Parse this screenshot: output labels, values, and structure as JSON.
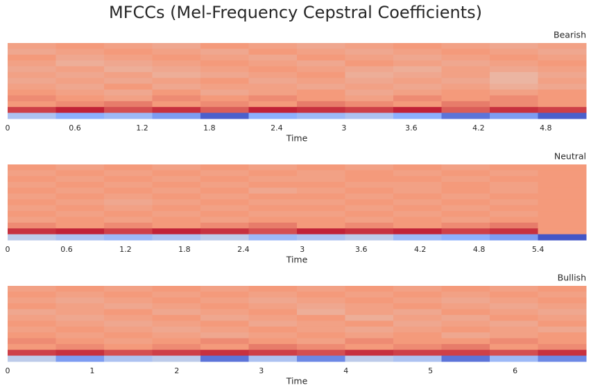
{
  "chart_data": [
    {
      "type": "heatmap",
      "figure_title": "MFCCs (Mel-Frequency Cepstral Coefficients)",
      "title": "Bearish",
      "xlabel": "Time",
      "xlim": [
        0,
        5.16
      ],
      "xticks": [
        0,
        0.6,
        1.2,
        1.8,
        2.4,
        3,
        3.6,
        4.2,
        4.8
      ],
      "zlim": [
        -1,
        1
      ],
      "colormap": "coolwarm",
      "z": [
        [
          0.45,
          0.5,
          0.45,
          0.4,
          0.5,
          0.45,
          0.4,
          0.45,
          0.5,
          0.45,
          0.4,
          0.45
        ],
        [
          0.4,
          0.45,
          0.5,
          0.45,
          0.4,
          0.5,
          0.45,
          0.4,
          0.45,
          0.5,
          0.45,
          0.4
        ],
        [
          0.5,
          0.4,
          0.45,
          0.5,
          0.45,
          0.4,
          0.5,
          0.45,
          0.4,
          0.45,
          0.5,
          0.45
        ],
        [
          0.45,
          0.35,
          0.4,
          0.45,
          0.5,
          0.45,
          0.4,
          0.5,
          0.45,
          0.4,
          0.45,
          0.5
        ],
        [
          0.4,
          0.45,
          0.35,
          0.4,
          0.45,
          0.5,
          0.45,
          0.4,
          0.35,
          0.45,
          0.4,
          0.45
        ],
        [
          0.45,
          0.4,
          0.45,
          0.35,
          0.4,
          0.45,
          0.5,
          0.35,
          0.4,
          0.45,
          0.3,
          0.4
        ],
        [
          0.4,
          0.45,
          0.4,
          0.45,
          0.5,
          0.4,
          0.45,
          0.4,
          0.45,
          0.4,
          0.3,
          0.45
        ],
        [
          0.45,
          0.4,
          0.5,
          0.4,
          0.45,
          0.45,
          0.4,
          0.45,
          0.4,
          0.45,
          0.35,
          0.4
        ],
        [
          0.5,
          0.45,
          0.4,
          0.5,
          0.4,
          0.45,
          0.5,
          0.4,
          0.45,
          0.5,
          0.45,
          0.5
        ],
        [
          0.55,
          0.5,
          0.45,
          0.55,
          0.5,
          0.55,
          0.5,
          0.45,
          0.55,
          0.5,
          0.55,
          0.5
        ],
        [
          0.5,
          0.55,
          0.6,
          0.5,
          0.55,
          0.5,
          0.6,
          0.55,
          0.5,
          0.6,
          0.55,
          0.5
        ],
        [
          0.8,
          0.9,
          0.75,
          0.85,
          0.7,
          0.9,
          0.85,
          0.8,
          0.9,
          0.7,
          0.85,
          0.8
        ],
        [
          -0.3,
          -0.5,
          -0.4,
          -0.6,
          -0.9,
          -0.5,
          -0.4,
          -0.3,
          -0.5,
          -0.8,
          -0.6,
          -0.9
        ]
      ]
    },
    {
      "type": "heatmap",
      "title": "Neutral",
      "xlabel": "Time",
      "xlim": [
        0,
        5.89
      ],
      "xticks": [
        0,
        0.6,
        1.2,
        1.8,
        2.4,
        3,
        3.6,
        4.2,
        4.8,
        5.4
      ],
      "zlim": [
        -1,
        1
      ],
      "colormap": "coolwarm",
      "z": [
        [
          0.5,
          0.45,
          0.5,
          0.45,
          0.5,
          0.45,
          0.5,
          0.45,
          0.5,
          0.45,
          0.5,
          0.5
        ],
        [
          0.45,
          0.5,
          0.45,
          0.5,
          0.45,
          0.5,
          0.45,
          0.5,
          0.45,
          0.5,
          0.45,
          0.5
        ],
        [
          0.5,
          0.45,
          0.5,
          0.45,
          0.5,
          0.45,
          0.45,
          0.5,
          0.5,
          0.45,
          0.5,
          0.5
        ],
        [
          0.45,
          0.5,
          0.45,
          0.5,
          0.45,
          0.5,
          0.5,
          0.45,
          0.45,
          0.5,
          0.45,
          0.5
        ],
        [
          0.5,
          0.45,
          0.5,
          0.45,
          0.5,
          0.4,
          0.45,
          0.5,
          0.45,
          0.5,
          0.45,
          0.5
        ],
        [
          0.45,
          0.5,
          0.45,
          0.5,
          0.45,
          0.5,
          0.5,
          0.45,
          0.5,
          0.45,
          0.5,
          0.5
        ],
        [
          0.5,
          0.45,
          0.4,
          0.45,
          0.5,
          0.45,
          0.45,
          0.5,
          0.45,
          0.5,
          0.45,
          0.5
        ],
        [
          0.45,
          0.5,
          0.45,
          0.5,
          0.45,
          0.5,
          0.5,
          0.45,
          0.5,
          0.45,
          0.5,
          0.5
        ],
        [
          0.5,
          0.45,
          0.5,
          0.45,
          0.5,
          0.45,
          0.45,
          0.5,
          0.45,
          0.5,
          0.45,
          0.5
        ],
        [
          0.45,
          0.5,
          0.45,
          0.5,
          0.45,
          0.5,
          0.5,
          0.45,
          0.5,
          0.45,
          0.5,
          0.5
        ],
        [
          0.55,
          0.5,
          0.55,
          0.5,
          0.55,
          0.6,
          0.5,
          0.55,
          0.5,
          0.55,
          0.6,
          0.5
        ],
        [
          0.85,
          0.9,
          0.8,
          0.9,
          0.85,
          0.75,
          0.9,
          0.85,
          0.9,
          0.8,
          0.85,
          0.5
        ],
        [
          -0.2,
          -0.3,
          -0.4,
          -0.3,
          -0.2,
          -0.4,
          -0.3,
          -0.2,
          -0.4,
          -0.5,
          -0.6,
          -0.95
        ]
      ]
    },
    {
      "type": "heatmap",
      "title": "Bullish",
      "xlabel": "Time",
      "xlim": [
        0,
        6.84
      ],
      "xticks": [
        0,
        1,
        2,
        3,
        4,
        5,
        6
      ],
      "zlim": [
        -1,
        1
      ],
      "colormap": "coolwarm",
      "z": [
        [
          0.45,
          0.5,
          0.45,
          0.5,
          0.45,
          0.5,
          0.45,
          0.5,
          0.45,
          0.5,
          0.45,
          0.5
        ],
        [
          0.5,
          0.45,
          0.5,
          0.45,
          0.5,
          0.45,
          0.5,
          0.45,
          0.5,
          0.45,
          0.5,
          0.45
        ],
        [
          0.45,
          0.4,
          0.45,
          0.5,
          0.45,
          0.4,
          0.45,
          0.5,
          0.45,
          0.4,
          0.45,
          0.5
        ],
        [
          0.5,
          0.45,
          0.4,
          0.45,
          0.5,
          0.45,
          0.4,
          0.45,
          0.5,
          0.45,
          0.4,
          0.45
        ],
        [
          0.4,
          0.45,
          0.5,
          0.4,
          0.45,
          0.5,
          0.35,
          0.45,
          0.4,
          0.5,
          0.45,
          0.4
        ],
        [
          0.45,
          0.4,
          0.45,
          0.5,
          0.4,
          0.45,
          0.5,
          0.35,
          0.45,
          0.4,
          0.5,
          0.45
        ],
        [
          0.5,
          0.45,
          0.4,
          0.45,
          0.5,
          0.4,
          0.45,
          0.5,
          0.4,
          0.45,
          0.4,
          0.5
        ],
        [
          0.45,
          0.5,
          0.45,
          0.4,
          0.45,
          0.5,
          0.45,
          0.4,
          0.45,
          0.5,
          0.45,
          0.4
        ],
        [
          0.5,
          0.45,
          0.5,
          0.45,
          0.4,
          0.45,
          0.5,
          0.45,
          0.5,
          0.4,
          0.45,
          0.5
        ],
        [
          0.55,
          0.5,
          0.45,
          0.5,
          0.55,
          0.5,
          0.45,
          0.55,
          0.5,
          0.5,
          0.55,
          0.5
        ],
        [
          0.5,
          0.55,
          0.5,
          0.55,
          0.5,
          0.6,
          0.55,
          0.5,
          0.55,
          0.6,
          0.5,
          0.55
        ],
        [
          0.8,
          0.85,
          0.75,
          0.8,
          0.85,
          0.8,
          0.75,
          0.85,
          0.8,
          0.8,
          0.75,
          0.85
        ],
        [
          -0.2,
          -0.6,
          -0.3,
          -0.2,
          -0.8,
          -0.3,
          -0.7,
          -0.2,
          -0.3,
          -0.8,
          -0.4,
          -0.7
        ]
      ]
    }
  ]
}
